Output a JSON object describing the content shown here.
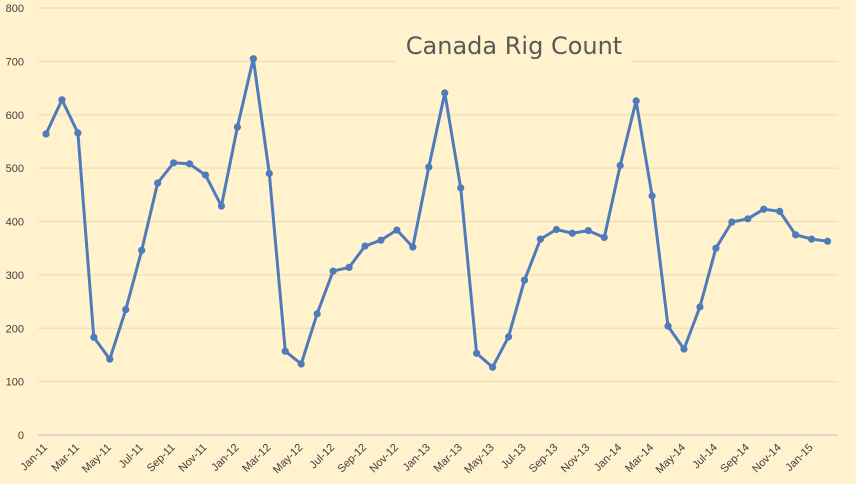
{
  "chart_data": {
    "type": "line",
    "title": "Canada Rig Count",
    "xlabel": "",
    "ylabel": "",
    "ylim": [
      0,
      800
    ],
    "yticks": [
      0,
      100,
      200,
      300,
      400,
      500,
      600,
      700,
      800
    ],
    "grid": true,
    "legend": "none",
    "x": [
      "Jan-11",
      "Feb-11",
      "Mar-11",
      "Apr-11",
      "May-11",
      "Jun-11",
      "Jul-11",
      "Aug-11",
      "Sep-11",
      "Oct-11",
      "Nov-11",
      "Dec-11",
      "Jan-12",
      "Feb-12",
      "Mar-12",
      "Apr-12",
      "May-12",
      "Jun-12",
      "Jul-12",
      "Aug-12",
      "Sep-12",
      "Oct-12",
      "Nov-12",
      "Dec-12",
      "Jan-13",
      "Feb-13",
      "Mar-13",
      "Apr-13",
      "May-13",
      "Jun-13",
      "Jul-13",
      "Aug-13",
      "Sep-13",
      "Oct-13",
      "Nov-13",
      "Dec-13",
      "Jan-14",
      "Feb-14",
      "Mar-14",
      "Apr-14",
      "May-14",
      "Jun-14",
      "Jul-14",
      "Aug-14",
      "Sep-14",
      "Oct-14",
      "Nov-14",
      "Dec-14",
      "Jan-15",
      "Feb-15"
    ],
    "xtick_labels": [
      "Jan-11",
      "Mar-11",
      "May-11",
      "Jul-11",
      "Sep-11",
      "Nov-11",
      "Jan-12",
      "Mar-12",
      "May-12",
      "Jul-12",
      "Sep-12",
      "Nov-12",
      "Jan-13",
      "Mar-13",
      "May-13",
      "Jul-13",
      "Sep-13",
      "Nov-13",
      "Jan-14",
      "Mar-14",
      "May-14",
      "Jul-14",
      "Sep-14",
      "Nov-14",
      "Jan-15"
    ],
    "series": [
      {
        "color": "#4f7bba",
        "values": [
          564,
          628,
          566,
          183,
          142,
          235,
          346,
          472,
          510,
          508,
          487,
          429,
          577,
          705,
          490,
          157,
          133,
          227,
          307,
          314,
          354,
          365,
          384,
          352,
          502,
          641,
          463,
          153,
          127,
          184,
          290,
          367,
          385,
          378,
          383,
          370,
          505,
          626,
          448,
          204,
          161,
          240,
          350,
          399,
          405,
          423,
          419,
          375,
          367,
          363
        ]
      }
    ]
  },
  "colors": {
    "background": "#fff2cc",
    "line": "#4f7bba",
    "text": "#404040",
    "title": "#595959"
  }
}
